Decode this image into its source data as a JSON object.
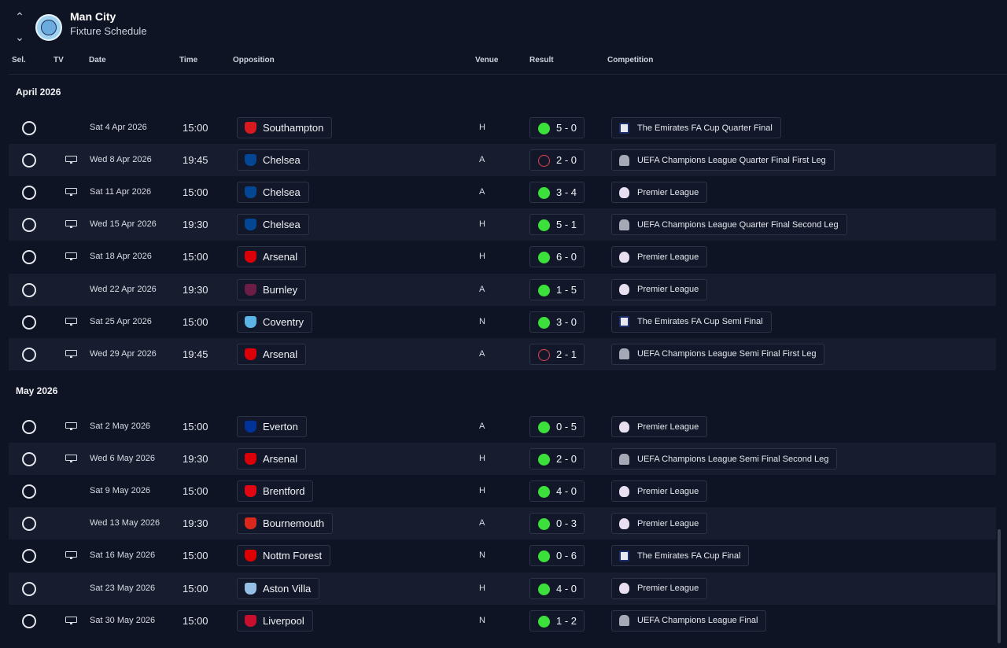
{
  "header": {
    "club_name": "Man City",
    "page_title": "Fixture Schedule",
    "columns": {
      "sel": "Sel.",
      "tv": "TV",
      "date": "Date",
      "time": "Time",
      "opposition": "Opposition",
      "venue": "Venue",
      "result": "Result",
      "competition": "Competition"
    }
  },
  "colors": {
    "win": "#3be03b",
    "loss": "#e8424f",
    "background": "#0f1424",
    "row_alt": "#171d2e"
  },
  "months": [
    {
      "label": "April 2026",
      "fixtures": [
        {
          "tv": false,
          "date": "Sat 4 Apr 2026",
          "time": "15:00",
          "opponent": "Southampton",
          "badge_color": "#d71920",
          "venue": "H",
          "outcome": "win",
          "score": "5 - 0",
          "comp_icon": "fa",
          "competition": "The Emirates FA Cup Quarter Final"
        },
        {
          "tv": true,
          "date": "Wed 8 Apr 2026",
          "time": "19:45",
          "opponent": "Chelsea",
          "badge_color": "#034694",
          "venue": "A",
          "outcome": "loss",
          "score": "2 - 0",
          "comp_icon": "ucl",
          "competition": "UEFA Champions League Quarter Final First Leg"
        },
        {
          "tv": true,
          "date": "Sat 11 Apr 2026",
          "time": "15:00",
          "opponent": "Chelsea",
          "badge_color": "#034694",
          "venue": "A",
          "outcome": "win",
          "score": "3 - 4",
          "comp_icon": "pl",
          "competition": "Premier League"
        },
        {
          "tv": true,
          "date": "Wed 15 Apr 2026",
          "time": "19:30",
          "opponent": "Chelsea",
          "badge_color": "#034694",
          "venue": "H",
          "outcome": "win",
          "score": "5 - 1",
          "comp_icon": "ucl",
          "competition": "UEFA Champions League Quarter Final Second Leg"
        },
        {
          "tv": true,
          "date": "Sat 18 Apr 2026",
          "time": "15:00",
          "opponent": "Arsenal",
          "badge_color": "#db0007",
          "venue": "H",
          "outcome": "win",
          "score": "6 - 0",
          "comp_icon": "pl",
          "competition": "Premier League"
        },
        {
          "tv": false,
          "date": "Wed 22 Apr 2026",
          "time": "19:30",
          "opponent": "Burnley",
          "badge_color": "#6c1d45",
          "venue": "A",
          "outcome": "win",
          "score": "1 - 5",
          "comp_icon": "pl",
          "competition": "Premier League"
        },
        {
          "tv": true,
          "date": "Sat 25 Apr 2026",
          "time": "15:00",
          "opponent": "Coventry",
          "badge_color": "#5bb4e5",
          "venue": "N",
          "outcome": "win",
          "score": "3 - 0",
          "comp_icon": "fa",
          "competition": "The Emirates FA Cup Semi Final"
        },
        {
          "tv": true,
          "date": "Wed 29 Apr 2026",
          "time": "19:45",
          "opponent": "Arsenal",
          "badge_color": "#db0007",
          "venue": "A",
          "outcome": "loss",
          "score": "2 - 1",
          "comp_icon": "ucl",
          "competition": "UEFA Champions League Semi Final First Leg"
        }
      ]
    },
    {
      "label": "May 2026",
      "fixtures": [
        {
          "tv": true,
          "date": "Sat 2 May 2026",
          "time": "15:00",
          "opponent": "Everton",
          "badge_color": "#003399",
          "venue": "A",
          "outcome": "win",
          "score": "0 - 5",
          "comp_icon": "pl",
          "competition": "Premier League"
        },
        {
          "tv": true,
          "date": "Wed 6 May 2026",
          "time": "19:30",
          "opponent": "Arsenal",
          "badge_color": "#db0007",
          "venue": "H",
          "outcome": "win",
          "score": "2 - 0",
          "comp_icon": "ucl",
          "competition": "UEFA Champions League Semi Final Second Leg"
        },
        {
          "tv": false,
          "date": "Sat 9 May 2026",
          "time": "15:00",
          "opponent": "Brentford",
          "badge_color": "#e30613",
          "venue": "H",
          "outcome": "win",
          "score": "4 - 0",
          "comp_icon": "pl",
          "competition": "Premier League"
        },
        {
          "tv": false,
          "date": "Wed 13 May 2026",
          "time": "19:30",
          "opponent": "Bournemouth",
          "badge_color": "#da291c",
          "venue": "A",
          "outcome": "win",
          "score": "0 - 3",
          "comp_icon": "pl",
          "competition": "Premier League"
        },
        {
          "tv": true,
          "date": "Sat 16 May 2026",
          "time": "15:00",
          "opponent": "Nottm Forest",
          "badge_color": "#dd0000",
          "venue": "N",
          "outcome": "win",
          "score": "0 - 6",
          "comp_icon": "fa",
          "competition": "The Emirates FA Cup Final"
        },
        {
          "tv": false,
          "date": "Sat 23 May 2026",
          "time": "15:00",
          "opponent": "Aston Villa",
          "badge_color": "#95bfe5",
          "venue": "H",
          "outcome": "win",
          "score": "4 - 0",
          "comp_icon": "pl",
          "competition": "Premier League"
        },
        {
          "tv": true,
          "date": "Sat 30 May 2026",
          "time": "15:00",
          "opponent": "Liverpool",
          "badge_color": "#c8102e",
          "venue": "N",
          "outcome": "win",
          "score": "1 - 2",
          "comp_icon": "ucl",
          "competition": "UEFA Champions League Final"
        }
      ]
    }
  ]
}
